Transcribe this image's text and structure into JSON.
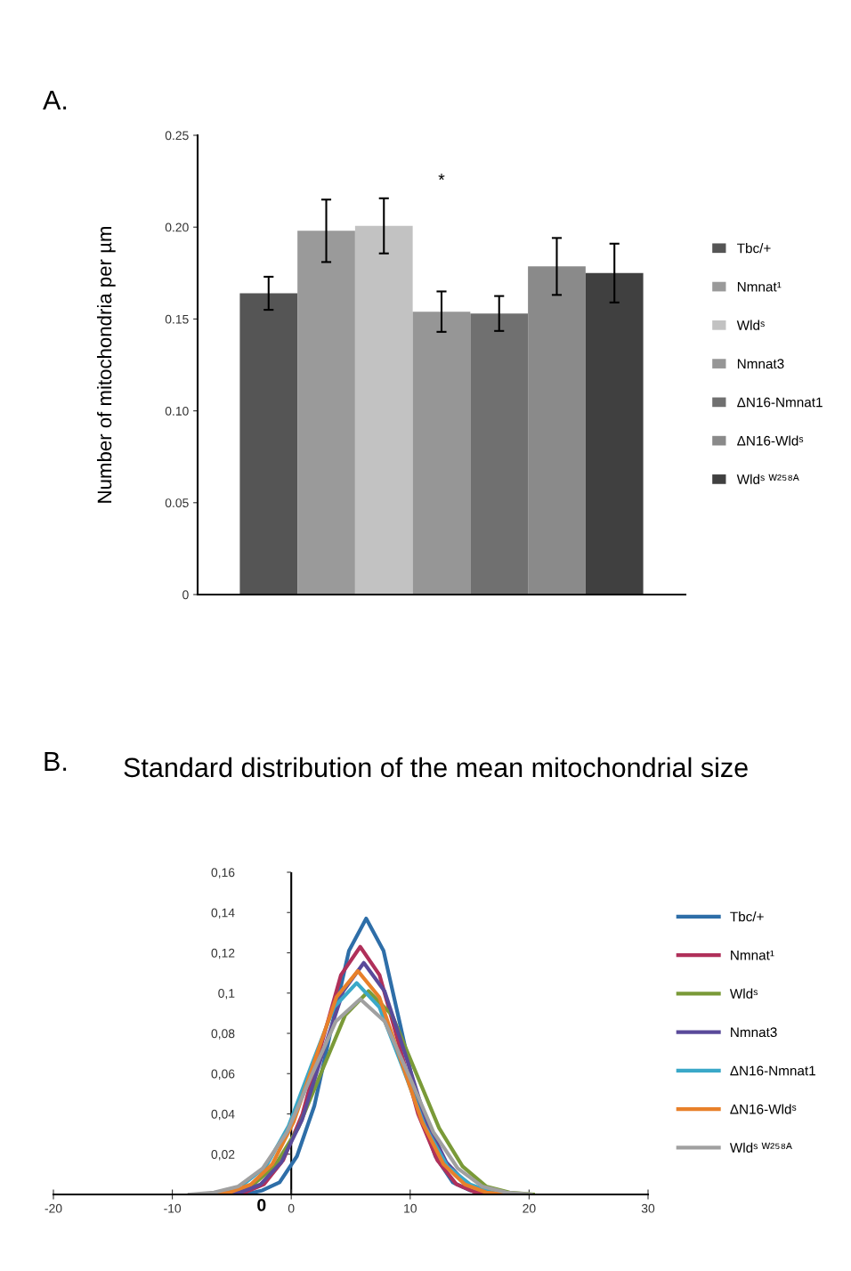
{
  "chart_data": [
    {
      "type": "bar",
      "ylabel": "Number of mitochondria per µm",
      "categories": [
        null
      ],
      "annotations": [
        "A.",
        "*"
      ],
      "series": [
        {
          "name": "Tbc/+",
          "color": "#555555",
          "values": [
            0.164
          ],
          "errors": [
            0.009
          ]
        },
        {
          "name": "Nmnat¹",
          "color": "#9a9a9a",
          "values": [
            0.198
          ],
          "errors": [
            0.017
          ]
        },
        {
          "name": "Wldˢ",
          "color": "#c2c2c2",
          "values": [
            0.2007
          ],
          "errors": [
            0.015
          ]
        },
        {
          "name": "Nmnat3",
          "color": "#969696",
          "values": [
            0.154
          ],
          "errors": [
            0.011
          ]
        },
        {
          "name": "ΔN16-Nmnat1",
          "color": "#707070",
          "values": [
            0.153
          ],
          "errors": [
            0.0095
          ]
        },
        {
          "name": "ΔN16-Wldˢ",
          "color": "#8a8a8a",
          "values": [
            0.1786
          ],
          "errors": [
            0.0155
          ]
        },
        {
          "name": "Wldˢ ᵂ²⁵⁸ᴬ",
          "color": "#404040",
          "values": [
            0.175
          ],
          "errors": [
            0.016
          ]
        }
      ],
      "ylim": [
        0,
        0.25
      ],
      "yticks": [
        {
          "value": 0,
          "label": "0"
        },
        {
          "value": 0.05,
          "label": "0.05"
        },
        {
          "value": 0.1,
          "label": "0.10"
        },
        {
          "value": 0.15,
          "label": "0.15"
        },
        {
          "value": 0.2,
          "label": "0.20"
        },
        {
          "value": 0.25,
          "label": "0.25"
        }
      ],
      "legend": "right",
      "grid": false
    },
    {
      "type": "line",
      "title": "Standard distribution of the mean mitochondrial size",
      "annotations": [
        "B.",
        "0"
      ],
      "series": [
        {
          "name": "Tbc/+",
          "color": "#2e6ea8",
          "x": [
            -3.89,
            -2.43,
            -0.98,
            0.48,
            1.94,
            3.39,
            4.85,
            6.3,
            7.76,
            9.21,
            10.67,
            12.12,
            13.58,
            15.03,
            16.49
          ],
          "values": [
            0,
            0.002,
            0.006,
            0.019,
            0.044,
            0.083,
            0.121,
            0.137,
            0.121,
            0.083,
            0.044,
            0.019,
            0.006,
            0.002,
            0
          ]
        },
        {
          "name": "Nmnat¹",
          "color": "#b0305a",
          "x": [
            -5.54,
            -3.92,
            -2.3,
            -0.68,
            0.94,
            2.56,
            4.18,
            5.8,
            7.42,
            9.04,
            10.66,
            12.28,
            13.9,
            15.52,
            17.14
          ],
          "values": [
            0,
            0.001,
            0.005,
            0.017,
            0.04,
            0.075,
            0.109,
            0.123,
            0.109,
            0.075,
            0.04,
            0.017,
            0.005,
            0.001,
            0
          ]
        },
        {
          "name": "Wldˢ",
          "color": "#7a9a38",
          "x": [
            -7.33,
            -5.35,
            -3.38,
            -1.4,
            0.58,
            2.55,
            4.53,
            6.5,
            8.48,
            10.45,
            12.43,
            14.4,
            16.38,
            18.35,
            20.33
          ],
          "values": [
            0,
            0.001,
            0.004,
            0.014,
            0.033,
            0.061,
            0.089,
            0.101,
            0.089,
            0.061,
            0.033,
            0.014,
            0.004,
            0.001,
            0
          ]
        },
        {
          "name": "Nmnat3",
          "color": "#5a4a9a",
          "x": [
            -6.05,
            -4.31,
            -2.58,
            -0.84,
            0.9,
            2.63,
            4.37,
            6.1,
            7.84,
            9.57,
            11.31,
            13.04,
            14.78,
            16.51,
            18.25
          ],
          "values": [
            0,
            0.001,
            0.005,
            0.016,
            0.037,
            0.07,
            0.101,
            0.115,
            0.101,
            0.07,
            0.037,
            0.016,
            0.005,
            0.001,
            0
          ]
        },
        {
          "name": "ΔN16-Nmnat1",
          "color": "#3aa8c8",
          "x": [
            -4.03,
            -2.12,
            -0.22,
            1.69,
            3.6,
            5.5,
            7.41,
            9.31,
            11.22,
            13.12,
            15.03,
            16.93
          ],
          "values": [
            0.005,
            0.014,
            0.034,
            0.064,
            0.093,
            0.105,
            0.093,
            0.064,
            0.034,
            0.014,
            0.005,
            0.001
          ]
        },
        {
          "name": "ΔN16-Wldˢ",
          "color": "#e8802a",
          "x": [
            -7,
            -5.2,
            -3.4,
            -1.6,
            0.2,
            2,
            3.8,
            5.6,
            7.4,
            9.2,
            11,
            12.8,
            14.6,
            16.4,
            18.2
          ],
          "values": [
            0,
            0.001,
            0.005,
            0.015,
            0.036,
            0.067,
            0.098,
            0.111,
            0.098,
            0.067,
            0.036,
            0.015,
            0.005,
            0.001,
            0
          ]
        },
        {
          "name": "Wldˢ ᵂ²⁵⁸ᴬ",
          "color": "#a0a0a0",
          "x": [
            -8.55,
            -6.5,
            -4.45,
            -2.4,
            -0.35,
            1.7,
            3.75,
            5.8,
            7.85,
            9.9,
            11.95,
            14,
            16.05,
            18.1,
            20.15
          ],
          "values": [
            0,
            0.001,
            0.004,
            0.013,
            0.031,
            0.059,
            0.086,
            0.097,
            0.086,
            0.059,
            0.031,
            0.013,
            0.004,
            0.001,
            0
          ]
        }
      ],
      "xlim": [
        -20,
        30
      ],
      "xticks": [
        -20,
        -10,
        0,
        10,
        20,
        30
      ],
      "ylim": [
        0,
        0.16
      ],
      "yticks": [
        {
          "value": 0.02,
          "label": "0,02"
        },
        {
          "value": 0.04,
          "label": "0,04"
        },
        {
          "value": 0.06,
          "label": "0,06"
        },
        {
          "value": 0.08,
          "label": "0,08"
        },
        {
          "value": 0.1,
          "label": "0,1"
        },
        {
          "value": 0.12,
          "label": "0,12"
        },
        {
          "value": 0.14,
          "label": "0,14"
        },
        {
          "value": 0.16,
          "label": "0,16"
        }
      ],
      "ref_lines": [
        {
          "axis": "x",
          "value": 0,
          "color": "#000000"
        }
      ],
      "legend": "right",
      "grid": false,
      "marker": "none",
      "line_style": "solid"
    }
  ]
}
